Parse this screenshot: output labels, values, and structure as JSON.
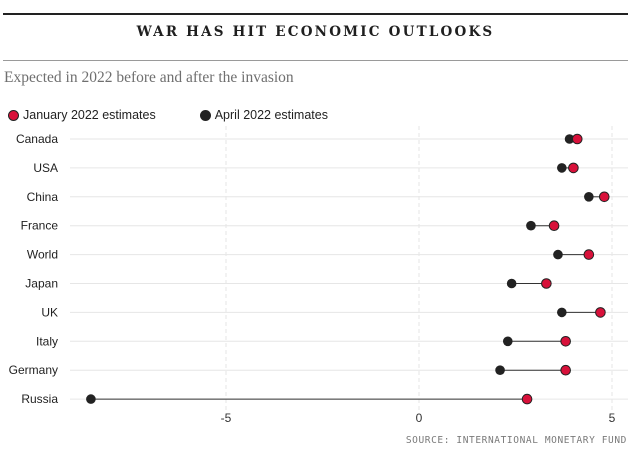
{
  "header": {
    "title": "WAR HAS HIT ECONOMIC OUTLOOKS",
    "subtitle": "Expected in 2022 before and after the invasion"
  },
  "legend": {
    "january_label": "January 2022 estimates",
    "april_label": "April 2022 estimates"
  },
  "source": "SOURCE: INTERNATIONAL MONETARY FUND",
  "colors": {
    "january": "#d8113a",
    "april": "#222222",
    "grid": "#e6e6e6",
    "connector": "#333333"
  },
  "chart_data": {
    "type": "dumbbell",
    "title": "WAR HAS HIT ECONOMIC OUTLOOKS",
    "subtitle": "Expected in 2022 before and after the invasion",
    "categories": [
      "Canada",
      "USA",
      "China",
      "France",
      "World",
      "Japan",
      "UK",
      "Italy",
      "Germany",
      "Russia"
    ],
    "series": [
      {
        "name": "January 2022 estimates",
        "values": [
          4.1,
          4.0,
          4.8,
          3.5,
          4.4,
          3.3,
          4.7,
          3.8,
          3.8,
          2.8
        ]
      },
      {
        "name": "April 2022 estimates",
        "values": [
          3.9,
          3.7,
          4.4,
          2.9,
          3.6,
          2.4,
          3.7,
          2.3,
          2.1,
          -8.5
        ]
      }
    ],
    "x_ticks": [
      -5,
      0,
      5
    ],
    "xlim": [
      -9,
      5.3
    ],
    "grid": true,
    "legend_position": "top-left"
  }
}
